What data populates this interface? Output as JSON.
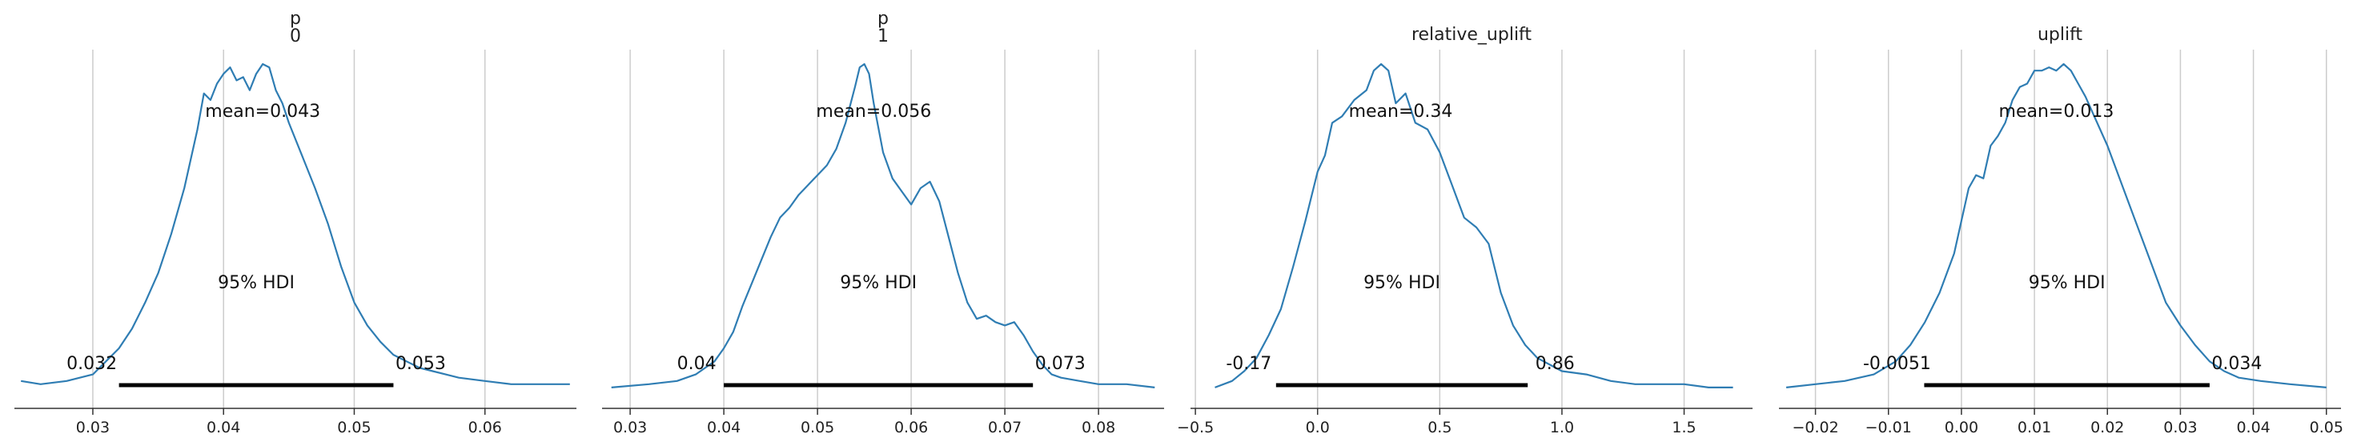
{
  "chart_data": [
    {
      "type": "line",
      "title": [
        "p",
        "0"
      ],
      "xlim": [
        0.024,
        0.067
      ],
      "ticks": [
        0.03,
        0.04,
        0.05,
        0.06
      ],
      "tick_labels": [
        "0.03",
        "0.04",
        "0.05",
        "0.06"
      ],
      "grid": true,
      "mean": 0.043,
      "mean_label": "mean=0.043",
      "hdi": [
        0.032,
        0.053
      ],
      "hdi_label": "95% HDI",
      "hdi_low_label": "0.032",
      "hdi_high_label": "0.053",
      "x": [
        0.0245,
        0.026,
        0.028,
        0.03,
        0.031,
        0.032,
        0.033,
        0.034,
        0.035,
        0.036,
        0.037,
        0.038,
        0.0385,
        0.039,
        0.0395,
        0.04,
        0.0405,
        0.041,
        0.0415,
        0.042,
        0.0425,
        0.043,
        0.0435,
        0.044,
        0.0445,
        0.045,
        0.046,
        0.047,
        0.048,
        0.049,
        0.05,
        0.051,
        0.052,
        0.053,
        0.054,
        0.055,
        0.056,
        0.057,
        0.058,
        0.06,
        0.062,
        0.064,
        0.0665
      ],
      "y": [
        0.03,
        0.02,
        0.03,
        0.05,
        0.09,
        0.13,
        0.19,
        0.27,
        0.36,
        0.48,
        0.62,
        0.8,
        0.91,
        0.89,
        0.94,
        0.97,
        0.99,
        0.95,
        0.96,
        0.92,
        0.97,
        1.0,
        0.99,
        0.92,
        0.88,
        0.82,
        0.72,
        0.62,
        0.51,
        0.38,
        0.27,
        0.2,
        0.15,
        0.11,
        0.09,
        0.07,
        0.06,
        0.05,
        0.04,
        0.03,
        0.02,
        0.02,
        0.02
      ]
    },
    {
      "type": "line",
      "title": [
        "p",
        "1"
      ],
      "xlim": [
        0.027,
        0.087
      ],
      "ticks": [
        0.03,
        0.04,
        0.05,
        0.06,
        0.07,
        0.08
      ],
      "tick_labels": [
        "0.03",
        "0.04",
        "0.05",
        "0.06",
        "0.07",
        "0.08"
      ],
      "grid": true,
      "mean": 0.056,
      "mean_label": "mean=0.056",
      "hdi": [
        0.04,
        0.073
      ],
      "hdi_label": "95% HDI",
      "hdi_low_label": "0.04",
      "hdi_high_label": "0.073",
      "x": [
        0.028,
        0.032,
        0.035,
        0.037,
        0.039,
        0.04,
        0.041,
        0.042,
        0.043,
        0.044,
        0.045,
        0.046,
        0.047,
        0.048,
        0.049,
        0.05,
        0.051,
        0.052,
        0.053,
        0.054,
        0.0545,
        0.055,
        0.0555,
        0.056,
        0.057,
        0.058,
        0.059,
        0.06,
        0.061,
        0.062,
        0.063,
        0.064,
        0.065,
        0.066,
        0.067,
        0.068,
        0.069,
        0.07,
        0.071,
        0.072,
        0.073,
        0.074,
        0.075,
        0.076,
        0.078,
        0.08,
        0.083,
        0.086
      ],
      "y": [
        0.01,
        0.02,
        0.03,
        0.05,
        0.09,
        0.13,
        0.18,
        0.26,
        0.33,
        0.4,
        0.47,
        0.53,
        0.56,
        0.6,
        0.63,
        0.66,
        0.69,
        0.74,
        0.82,
        0.93,
        0.99,
        1.0,
        0.97,
        0.88,
        0.73,
        0.65,
        0.61,
        0.57,
        0.62,
        0.64,
        0.58,
        0.47,
        0.36,
        0.27,
        0.22,
        0.23,
        0.21,
        0.2,
        0.21,
        0.17,
        0.12,
        0.08,
        0.05,
        0.04,
        0.03,
        0.02,
        0.02,
        0.01
      ]
    },
    {
      "type": "line",
      "title": [
        "relative_uplift"
      ],
      "xlim": [
        -0.52,
        1.78
      ],
      "ticks": [
        -0.5,
        0.0,
        0.5,
        1.0,
        1.5
      ],
      "tick_labels": [
        "−0.5",
        "0.0",
        "0.5",
        "1.0",
        "1.5"
      ],
      "grid": true,
      "mean": 0.34,
      "mean_label": "mean=0.34",
      "hdi": [
        -0.17,
        0.86
      ],
      "hdi_label": "95% HDI",
      "hdi_low_label": "-0.17",
      "hdi_high_label": "0.86",
      "x": [
        -0.42,
        -0.35,
        -0.3,
        -0.25,
        -0.2,
        -0.15,
        -0.1,
        -0.05,
        0.0,
        0.03,
        0.06,
        0.1,
        0.15,
        0.2,
        0.23,
        0.26,
        0.29,
        0.32,
        0.36,
        0.4,
        0.45,
        0.5,
        0.55,
        0.6,
        0.65,
        0.7,
        0.75,
        0.8,
        0.85,
        0.9,
        0.95,
        1.0,
        1.1,
        1.2,
        1.3,
        1.4,
        1.5,
        1.6,
        1.7
      ],
      "y": [
        0.01,
        0.03,
        0.06,
        0.1,
        0.17,
        0.25,
        0.38,
        0.52,
        0.67,
        0.72,
        0.82,
        0.84,
        0.89,
        0.92,
        0.98,
        1.0,
        0.98,
        0.88,
        0.91,
        0.82,
        0.8,
        0.73,
        0.63,
        0.53,
        0.5,
        0.45,
        0.3,
        0.2,
        0.14,
        0.1,
        0.08,
        0.06,
        0.05,
        0.03,
        0.02,
        0.02,
        0.02,
        0.01,
        0.01
      ]
    },
    {
      "type": "line",
      "title": [
        "uplift"
      ],
      "xlim": [
        -0.025,
        0.052
      ],
      "ticks": [
        -0.02,
        -0.01,
        0.0,
        0.01,
        0.02,
        0.03,
        0.04,
        0.05
      ],
      "tick_labels": [
        "−0.02",
        "−0.01",
        "0.00",
        "0.01",
        "0.02",
        "0.03",
        "0.04",
        "0.05"
      ],
      "grid": true,
      "mean": 0.013,
      "mean_label": "mean=0.013",
      "hdi": [
        -0.0051,
        0.034
      ],
      "hdi_label": "95% HDI",
      "hdi_low_label": "-0.0051",
      "hdi_high_label": "0.034",
      "x": [
        -0.024,
        -0.02,
        -0.016,
        -0.012,
        -0.009,
        -0.007,
        -0.005,
        -0.003,
        -0.001,
        0.0,
        0.001,
        0.002,
        0.003,
        0.004,
        0.005,
        0.006,
        0.007,
        0.008,
        0.009,
        0.01,
        0.011,
        0.012,
        0.013,
        0.014,
        0.015,
        0.016,
        0.017,
        0.018,
        0.02,
        0.022,
        0.024,
        0.026,
        0.028,
        0.03,
        0.032,
        0.034,
        0.036,
        0.038,
        0.041,
        0.045,
        0.05
      ],
      "y": [
        0.01,
        0.02,
        0.03,
        0.05,
        0.09,
        0.14,
        0.21,
        0.3,
        0.42,
        0.52,
        0.62,
        0.66,
        0.65,
        0.75,
        0.78,
        0.82,
        0.89,
        0.93,
        0.94,
        0.98,
        0.98,
        0.99,
        0.98,
        1.0,
        0.98,
        0.94,
        0.9,
        0.85,
        0.75,
        0.63,
        0.51,
        0.39,
        0.27,
        0.2,
        0.14,
        0.09,
        0.06,
        0.04,
        0.03,
        0.02,
        0.01
      ]
    }
  ],
  "colors": {
    "kde_line": "#2f7db3",
    "hdi_bar": "#000000",
    "grid": "#cccccc",
    "axis": "#333333"
  }
}
